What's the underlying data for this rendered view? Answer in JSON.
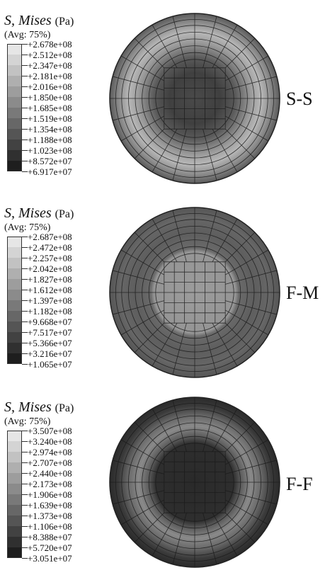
{
  "panels": [
    {
      "title_var": "S, Mises",
      "title_unit": "(Pa)",
      "avg": "(Avg: 75%)",
      "label": "S-S",
      "values": [
        "+2.678e+08",
        "+2.512e+08",
        "+2.347e+08",
        "+2.181e+08",
        "+2.016e+08",
        "+1.850e+08",
        "+1.685e+08",
        "+1.519e+08",
        "+1.354e+08",
        "+1.188e+08",
        "+1.023e+08",
        "+8.572e+07",
        "+6.917e+07"
      ]
    },
    {
      "title_var": "S, Mises",
      "title_unit": "(Pa)",
      "avg": "(Avg: 75%)",
      "label": "F-M",
      "values": [
        "+2.687e+08",
        "+2.472e+08",
        "+2.257e+08",
        "+2.042e+08",
        "+1.827e+08",
        "+1.612e+08",
        "+1.397e+08",
        "+1.182e+08",
        "+9.668e+07",
        "+7.517e+07",
        "+5.366e+07",
        "+3.216e+07",
        "+1.065e+07"
      ]
    },
    {
      "title_var": "S, Mises",
      "title_unit": "(Pa)",
      "avg": "(Avg: 75%)",
      "label": "F-F",
      "values": [
        "+3.507e+08",
        "+3.240e+08",
        "+2.974e+08",
        "+2.707e+08",
        "+2.440e+08",
        "+2.173e+08",
        "+1.906e+08",
        "+1.639e+08",
        "+1.373e+08",
        "+1.106e+08",
        "+8.388e+07",
        "+5.720e+07",
        "+3.051e+07"
      ]
    }
  ],
  "colors": {
    "scale_top": "#e6e6e6",
    "scale_bottom": "#1e1e1e",
    "mesh_line": "#1a1a1a"
  }
}
